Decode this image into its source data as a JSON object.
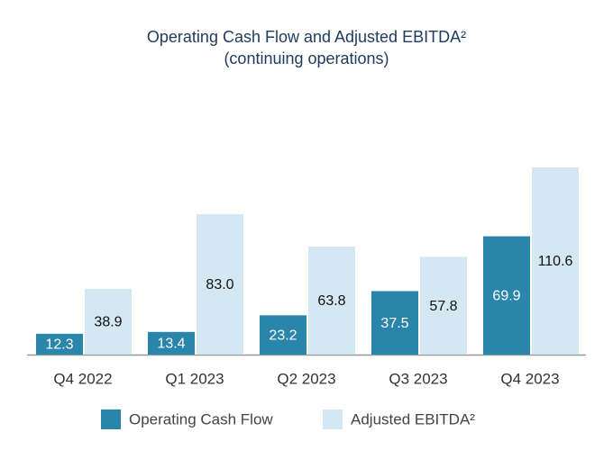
{
  "chart_data": {
    "type": "bar",
    "title": "Operating Cash Flow and Adjusted EBITDA²",
    "subtitle": "(continuing operations)",
    "categories": [
      "Q4 2022",
      "Q1 2023",
      "Q2 2023",
      "Q3 2023",
      "Q4 2023"
    ],
    "series": [
      {
        "name": "Operating Cash Flow",
        "color": "#2a85aa",
        "label_color": "#ffffff",
        "values": [
          12.3,
          13.4,
          23.2,
          37.5,
          69.9
        ],
        "value_labels": [
          "12.3",
          "13.4",
          "23.2",
          "37.5",
          "69.9"
        ]
      },
      {
        "name": "Adjusted EBITDA²",
        "color": "#d3e8f2",
        "label_color": "#111111",
        "values": [
          38.9,
          83.0,
          63.8,
          57.8,
          110.6
        ],
        "value_labels": [
          "38.9",
          "83.0",
          "63.8",
          "57.8",
          "110.6"
        ]
      }
    ],
    "legend": "bottom"
  }
}
